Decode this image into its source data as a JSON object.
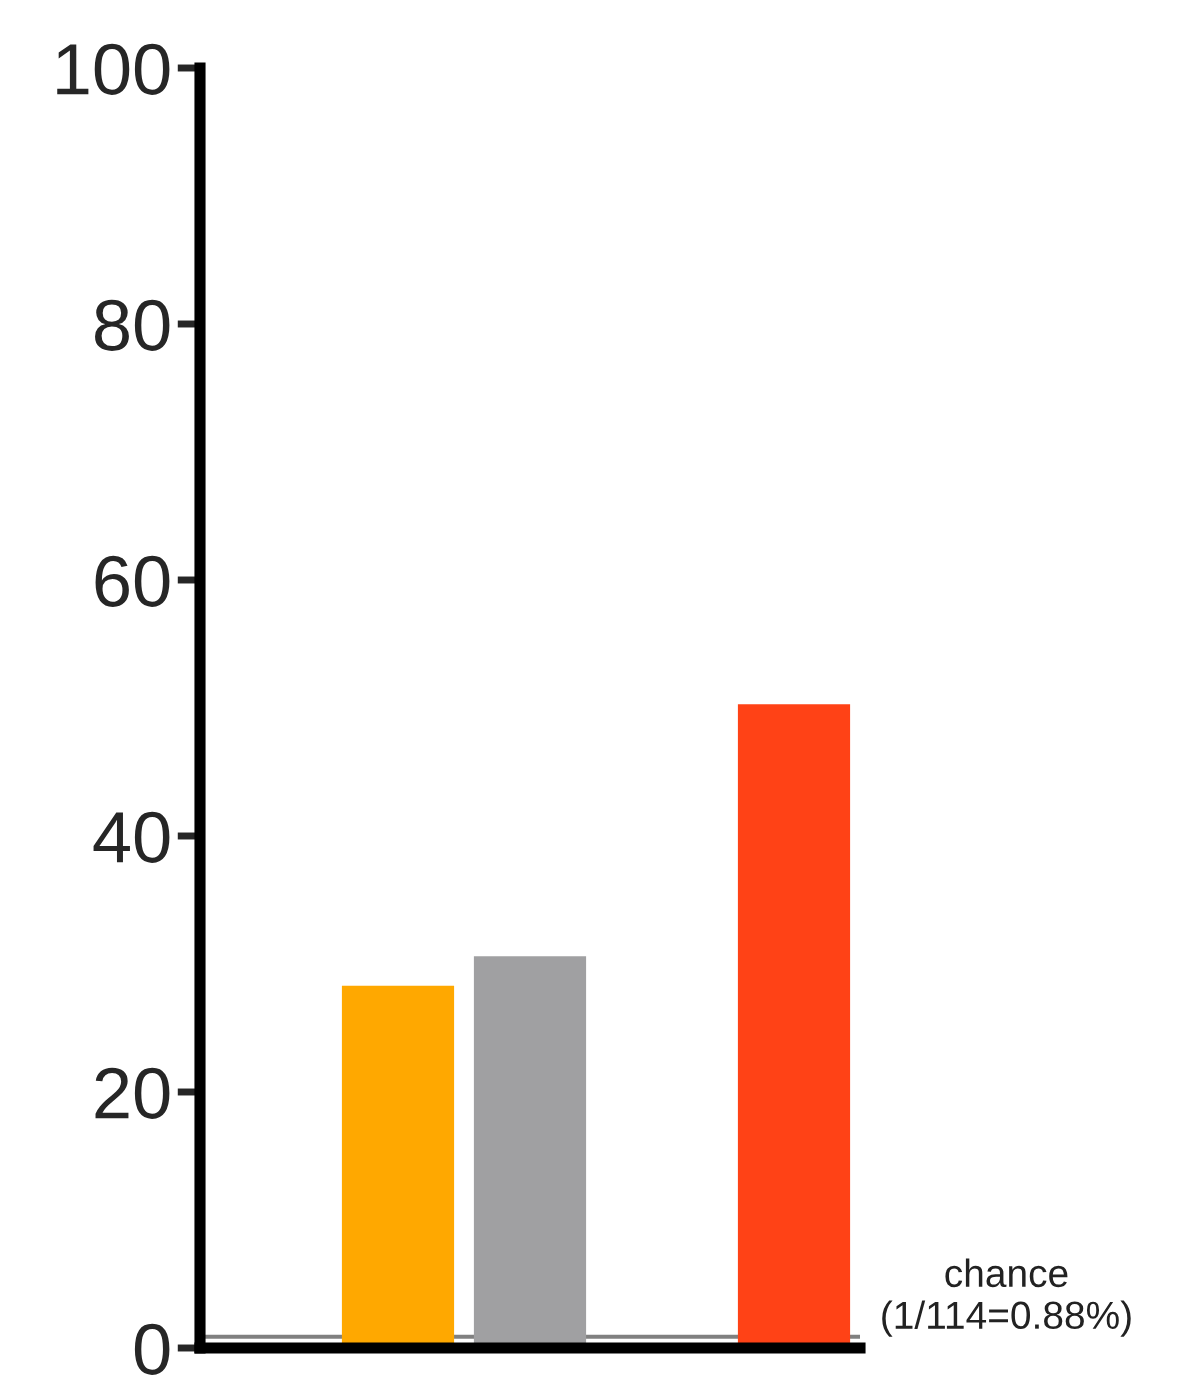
{
  "chart_data": {
    "type": "bar",
    "categories": [
      null,
      null,
      null,
      null,
      null
    ],
    "values": [
      null,
      28.3,
      30.6,
      null,
      50.3
    ],
    "colors": [
      "#ffffff",
      "#ffa800",
      "#a0a0a2",
      "#ffffff",
      "#ff4216"
    ],
    "ylim": [
      0,
      100
    ],
    "yticks": [
      0,
      20,
      40,
      60,
      80,
      100
    ],
    "ref_lines": [
      {
        "axis": "y",
        "value": 0.88,
        "label": "chance\n(1/114=0.88%)",
        "color": "#808080"
      }
    ],
    "grid": false,
    "legend": false
  }
}
